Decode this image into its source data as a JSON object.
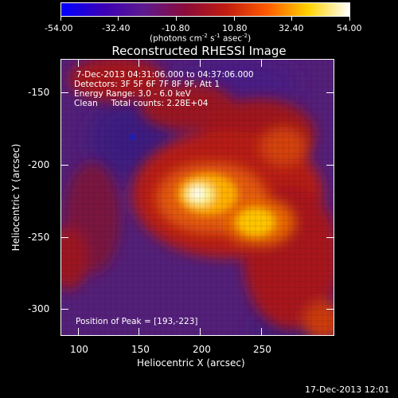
{
  "colorbar": {
    "tick_labels": [
      "-54.00",
      "-32.40",
      "-10.80",
      "10.80",
      "32.40",
      "54.00"
    ],
    "units_prefix": "(photons cm",
    "units_exp1": "-2",
    "units_mid": " s",
    "units_exp2": "-1",
    "units_mid2": " asec",
    "units_exp3": "-2",
    "units_suffix": ")",
    "stops": [
      "#0000ff",
      "#3a00b8",
      "#5d1a8f",
      "#8a0b3a",
      "#c01c10",
      "#ff5a00",
      "#ffd100",
      "#ffffff"
    ]
  },
  "plot": {
    "title": "Reconstructed RHESSI Image",
    "x_axis_label": "Heliocentric X (arcsec)",
    "y_axis_label": "Heliocentric Y (arcsec)",
    "x_ticks": [
      "100",
      "150",
      "200",
      "250"
    ],
    "y_ticks": [
      "-150",
      "-200",
      "-250",
      "-300"
    ],
    "info_lines": [
      "  7-Dec-2013 04:31:06.000 to 04:37:06.000",
      "Detectors: 3F 5F 6F 7F 8F 9F, Att 1",
      "Energy Range: 3.0 - 6.0 keV",
      "Clean     Total counts: 2.28E+04"
    ],
    "peak_text": "Position of Peak = [193,-223]"
  },
  "footer": {
    "timestamp": "17-Dec-2013 12:01"
  }
}
